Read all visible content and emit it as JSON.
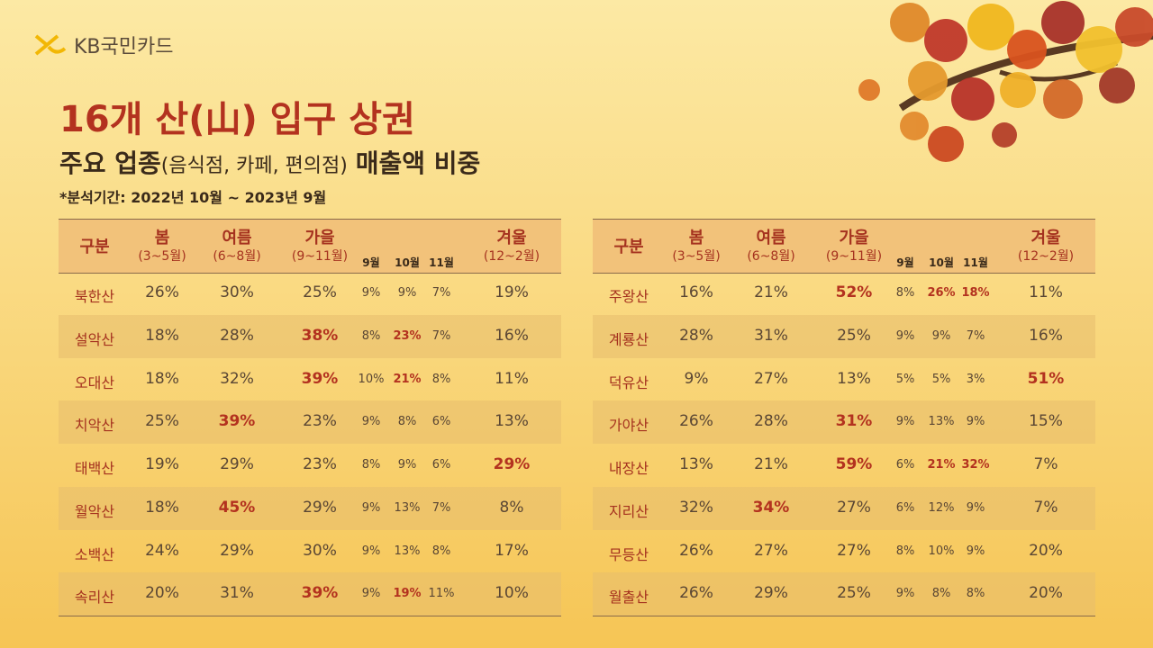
{
  "logo": "KB국민카드",
  "title": "16개 산(山) 입구 상권",
  "subtitle": {
    "bold1": "주요 업종",
    "normal": "(음식점, 카페, 편의점)",
    "bold2": "매출액 비중"
  },
  "note": "*분석기간: 2022년 10월 ~ 2023년 9월",
  "header": {
    "label": "구분",
    "spring": "봄",
    "spring_sub": "(3~5월)",
    "summer": "여름",
    "summer_sub": "(6~8월)",
    "autumn": "가을",
    "autumn_sub": "(9~11월)",
    "sep": "9월",
    "oct": "10월",
    "nov": "11월",
    "winter": "겨울",
    "winter_sub": "(12~2월)"
  },
  "tables": [
    {
      "rows": [
        {
          "name": "북한산",
          "values": [
            "26%",
            "30%",
            "25%",
            "9%",
            "9%",
            "7%",
            "19%"
          ],
          "highlight": []
        },
        {
          "name": "설악산",
          "values": [
            "18%",
            "28%",
            "38%",
            "8%",
            "23%",
            "7%",
            "16%"
          ],
          "highlight": [
            2,
            4
          ]
        },
        {
          "name": "오대산",
          "values": [
            "18%",
            "32%",
            "39%",
            "10%",
            "21%",
            "8%",
            "11%"
          ],
          "highlight": [
            2,
            4
          ]
        },
        {
          "name": "치악산",
          "values": [
            "25%",
            "39%",
            "23%",
            "9%",
            "8%",
            "6%",
            "13%"
          ],
          "highlight": [
            1
          ]
        },
        {
          "name": "태백산",
          "values": [
            "19%",
            "29%",
            "23%",
            "8%",
            "9%",
            "6%",
            "29%"
          ],
          "highlight": [
            6
          ]
        },
        {
          "name": "월악산",
          "values": [
            "18%",
            "45%",
            "29%",
            "9%",
            "13%",
            "7%",
            "8%"
          ],
          "highlight": [
            1
          ]
        },
        {
          "name": "소백산",
          "values": [
            "24%",
            "29%",
            "30%",
            "9%",
            "13%",
            "8%",
            "17%"
          ],
          "highlight": []
        },
        {
          "name": "속리산",
          "values": [
            "20%",
            "31%",
            "39%",
            "9%",
            "19%",
            "11%",
            "10%"
          ],
          "highlight": [
            2,
            4
          ]
        }
      ]
    },
    {
      "rows": [
        {
          "name": "주왕산",
          "values": [
            "16%",
            "21%",
            "52%",
            "8%",
            "26%",
            "18%",
            "11%"
          ],
          "highlight": [
            2,
            4,
            5
          ]
        },
        {
          "name": "계룡산",
          "values": [
            "28%",
            "31%",
            "25%",
            "9%",
            "9%",
            "7%",
            "16%"
          ],
          "highlight": []
        },
        {
          "name": "덕유산",
          "values": [
            "9%",
            "27%",
            "13%",
            "5%",
            "5%",
            "3%",
            "51%"
          ],
          "highlight": [
            6
          ]
        },
        {
          "name": "가야산",
          "values": [
            "26%",
            "28%",
            "31%",
            "9%",
            "13%",
            "9%",
            "15%"
          ],
          "highlight": [
            2
          ]
        },
        {
          "name": "내장산",
          "values": [
            "13%",
            "21%",
            "59%",
            "6%",
            "21%",
            "32%",
            "7%"
          ],
          "highlight": [
            2,
            4,
            5
          ]
        },
        {
          "name": "지리산",
          "values": [
            "32%",
            "34%",
            "27%",
            "6%",
            "12%",
            "9%",
            "7%"
          ],
          "highlight": [
            1
          ]
        },
        {
          "name": "무등산",
          "values": [
            "26%",
            "27%",
            "27%",
            "8%",
            "10%",
            "9%",
            "20%"
          ],
          "highlight": []
        },
        {
          "name": "월출산",
          "values": [
            "26%",
            "29%",
            "25%",
            "9%",
            "8%",
            "8%",
            "20%"
          ],
          "highlight": []
        }
      ]
    }
  ]
}
